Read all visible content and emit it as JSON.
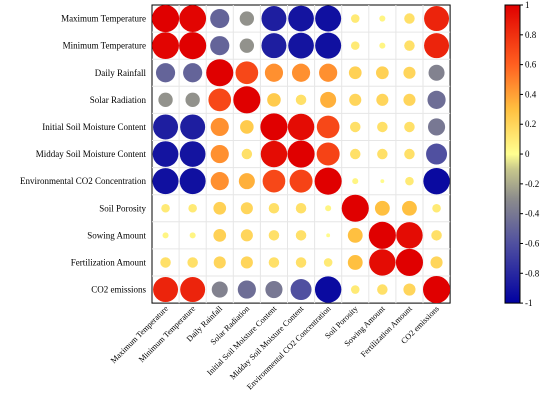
{
  "chart_data": {
    "type": "heatmap",
    "title": "",
    "labels": [
      "Maximum Temperature",
      "Minimum Temperature",
      "Daily Rainfall",
      "Solar Radiation",
      "Initial Soil Moisture Content",
      "Midday Soil Moisture Content",
      "Environmental CO2 Concentration",
      "Soil Porosity",
      "Sowing Amount",
      "Fertilization Amount",
      "CO2 emissions"
    ],
    "matrix": [
      [
        1.0,
        0.98,
        -0.5,
        -0.28,
        -0.85,
        -0.9,
        -0.92,
        0.1,
        0.05,
        0.15,
        0.85
      ],
      [
        0.98,
        1.0,
        -0.5,
        -0.28,
        -0.85,
        -0.9,
        -0.92,
        0.1,
        0.05,
        0.15,
        0.85
      ],
      [
        -0.5,
        -0.5,
        1.0,
        0.7,
        0.45,
        0.45,
        0.45,
        0.22,
        0.22,
        0.2,
        -0.35
      ],
      [
        -0.28,
        -0.28,
        0.7,
        1.0,
        0.25,
        0.15,
        0.35,
        0.2,
        0.2,
        0.2,
        -0.45
      ],
      [
        -0.85,
        -0.85,
        0.45,
        0.25,
        1.0,
        0.95,
        0.7,
        0.15,
        0.15,
        0.15,
        -0.4
      ],
      [
        -0.9,
        -0.9,
        0.45,
        0.15,
        0.95,
        1.0,
        0.72,
        0.15,
        0.15,
        0.15,
        -0.6
      ],
      [
        -0.92,
        -0.92,
        0.45,
        0.35,
        0.7,
        0.72,
        1.0,
        0.05,
        0.02,
        0.1,
        -0.95
      ],
      [
        0.1,
        0.1,
        0.22,
        0.2,
        0.15,
        0.15,
        0.05,
        1.0,
        0.3,
        0.3,
        0.1
      ],
      [
        0.05,
        0.05,
        0.22,
        0.2,
        0.15,
        0.15,
        0.02,
        0.3,
        1.0,
        0.95,
        0.15
      ],
      [
        0.15,
        0.15,
        0.2,
        0.2,
        0.15,
        0.15,
        0.1,
        0.3,
        0.95,
        1.0,
        0.2
      ],
      [
        0.85,
        0.85,
        -0.35,
        -0.45,
        -0.4,
        -0.6,
        -0.95,
        0.1,
        0.15,
        0.2,
        1.0
      ]
    ],
    "colorbar": {
      "range": [
        -1,
        1
      ],
      "ticks": [
        "1",
        "0.8",
        "0.6",
        "0.4",
        "0.2",
        "0",
        "-0.2",
        "-0.4",
        "-0.6",
        "-0.8",
        "-1"
      ],
      "colors": [
        "#0000a0",
        "#3c3ca8",
        "#787890",
        "#b4b480",
        "#ffff80",
        "#ffc040",
        "#ff4020",
        "#e00000"
      ]
    },
    "grid": true,
    "legend_position": "right"
  }
}
